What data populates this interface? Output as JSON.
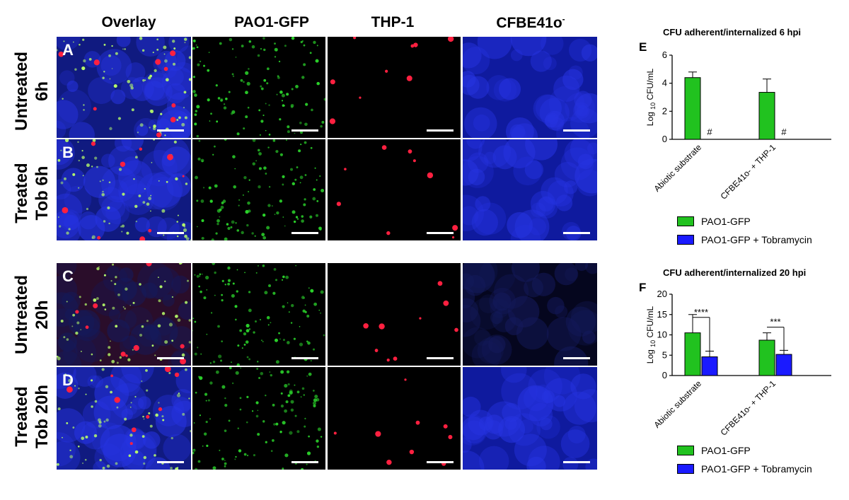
{
  "columns": [
    "Overlay",
    "PAO1-GFP",
    "THP-1",
    "CFBE41o"
  ],
  "column_superscript": "-",
  "rows": [
    {
      "line1": "Untreated",
      "line2": "6h",
      "panel": "A"
    },
    {
      "line1": "Treated",
      "line2": "Tob 6h",
      "panel": "B"
    },
    {
      "line1": "Untreated",
      "line2": "20h",
      "panel": "C"
    },
    {
      "line1": "Treated",
      "line2": "Tob 20h",
      "panel": "D"
    }
  ],
  "colors": {
    "green_bar": "#21c21f",
    "blue_bar": "#1a1aff",
    "gfp": "#2bd42b",
    "thp1": "#ff1a1a",
    "dapi": "#1f2bd9"
  },
  "chart_data": [
    {
      "panel_letter": "E",
      "type": "bar",
      "title": "CFU adherent/internalized 6 hpi",
      "ylabel_prefix": "Log",
      "ylabel_sub": "10",
      "ylabel_suffix": "CFU/mL",
      "categories": [
        "Abiotic substrate",
        "CFBE41o- + THP-1"
      ],
      "ylim": [
        0,
        6
      ],
      "yticks": [
        "0",
        "2",
        "4",
        "6"
      ],
      "series": [
        {
          "name": "PAO1-GFP",
          "color": "#21c21f",
          "values": [
            4.4,
            3.35
          ],
          "errors": [
            0.4,
            0.95
          ]
        },
        {
          "name": "PAO1-GFP + Tobramycin",
          "color": "#1a1aff",
          "values": [
            0,
            0
          ],
          "errors": [
            0,
            0
          ]
        }
      ],
      "annotations": [
        "#",
        "#"
      ],
      "legend": [
        "PAO1-GFP",
        "PAO1-GFP + Tobramycin"
      ]
    },
    {
      "panel_letter": "F",
      "type": "bar",
      "title": "CFU adherent/internalized 20 hpi",
      "ylabel_prefix": "Log",
      "ylabel_sub": "10",
      "ylabel_suffix": "CFU/mL",
      "categories": [
        "Abiotic substrate",
        "CFBE41o- + THP-1"
      ],
      "ylim": [
        0,
        20
      ],
      "yticks": [
        "0",
        "5",
        "10",
        "15",
        "20"
      ],
      "series": [
        {
          "name": "PAO1-GFP",
          "color": "#21c21f",
          "values": [
            10.5,
            8.7
          ],
          "errors": [
            4.5,
            1.8
          ]
        },
        {
          "name": "PAO1-GFP + Tobramycin",
          "color": "#1a1aff",
          "values": [
            4.6,
            5.2
          ],
          "errors": [
            1.4,
            1.0
          ]
        }
      ],
      "significance": [
        "****",
        "***"
      ],
      "legend": [
        "PAO1-GFP",
        "PAO1-GFP + Tobramycin"
      ]
    }
  ]
}
